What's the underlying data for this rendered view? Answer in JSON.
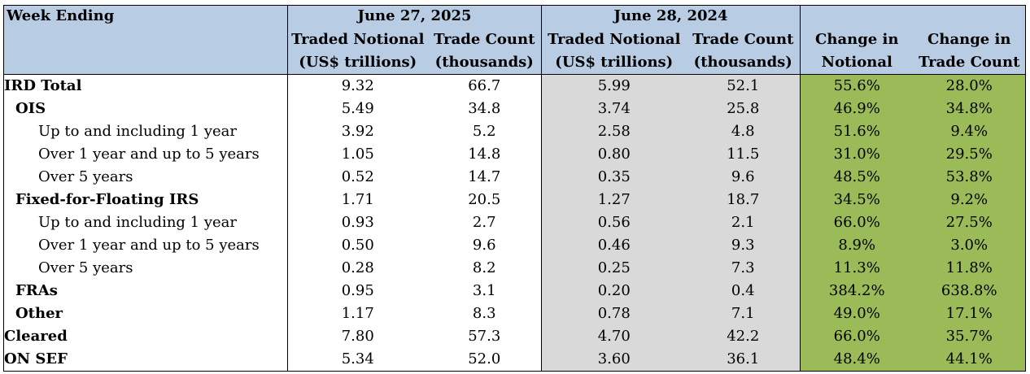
{
  "header": {
    "week_ending": "Week Ending",
    "period_2025": "June 27, 2025",
    "period_2024": "June 28, 2024",
    "traded_notional": "Traded Notional",
    "traded_notional_unit": "(US$ trillions)",
    "trade_count": "Trade Count",
    "trade_count_unit": "(thousands)",
    "change_in": "Change in",
    "notional": "Notional",
    "change_trade_count": "Trade Count"
  },
  "rows": [
    {
      "label": "IRD Total",
      "n25": "9.32",
      "c25": "66.7",
      "n24": "5.99",
      "c24": "52.1",
      "dn": "55.6%",
      "dc": "28.0%"
    },
    {
      "label": "OIS",
      "n25": "5.49",
      "c25": "34.8",
      "n24": "3.74",
      "c24": "25.8",
      "dn": "46.9%",
      "dc": "34.8%"
    },
    {
      "label": "Up to and including 1 year",
      "n25": "3.92",
      "c25": "5.2",
      "n24": "2.58",
      "c24": "4.8",
      "dn": "51.6%",
      "dc": "9.4%"
    },
    {
      "label": "Over 1 year and up to 5 years",
      "n25": "1.05",
      "c25": "14.8",
      "n24": "0.80",
      "c24": "11.5",
      "dn": "31.0%",
      "dc": "29.5%"
    },
    {
      "label": "Over 5 years",
      "n25": "0.52",
      "c25": "14.7",
      "n24": "0.35",
      "c24": "9.6",
      "dn": "48.5%",
      "dc": "53.8%"
    },
    {
      "label": "Fixed-for-Floating IRS",
      "n25": "1.71",
      "c25": "20.5",
      "n24": "1.27",
      "c24": "18.7",
      "dn": "34.5%",
      "dc": "9.2%"
    },
    {
      "label": "Up to and including 1 year",
      "n25": "0.93",
      "c25": "2.7",
      "n24": "0.56",
      "c24": "2.1",
      "dn": "66.0%",
      "dc": "27.5%"
    },
    {
      "label": "Over 1 year and up to 5 years",
      "n25": "0.50",
      "c25": "9.6",
      "n24": "0.46",
      "c24": "9.3",
      "dn": "8.9%",
      "dc": "3.0%"
    },
    {
      "label": "Over 5 years",
      "n25": "0.28",
      "c25": "8.2",
      "n24": "0.25",
      "c24": "7.3",
      "dn": "11.3%",
      "dc": "11.8%"
    },
    {
      "label": "FRAs",
      "n25": "0.95",
      "c25": "3.1",
      "n24": "0.20",
      "c24": "0.4",
      "dn": "384.2%",
      "dc": "638.8%"
    },
    {
      "label": "Other",
      "n25": "1.17",
      "c25": "8.3",
      "n24": "0.78",
      "c24": "7.1",
      "dn": "49.0%",
      "dc": "17.1%"
    },
    {
      "label": "Cleared",
      "n25": "7.80",
      "c25": "57.3",
      "n24": "4.70",
      "c24": "42.2",
      "dn": "66.0%",
      "dc": "35.7%"
    },
    {
      "label": "ON SEF",
      "n25": "5.34",
      "c25": "52.0",
      "n24": "3.60",
      "c24": "36.1",
      "dn": "48.4%",
      "dc": "44.1%"
    }
  ],
  "colors": {
    "header_bg": "#b8cce4",
    "prior_year_bg": "#d9d9d9",
    "change_bg": "#9bbb59"
  }
}
